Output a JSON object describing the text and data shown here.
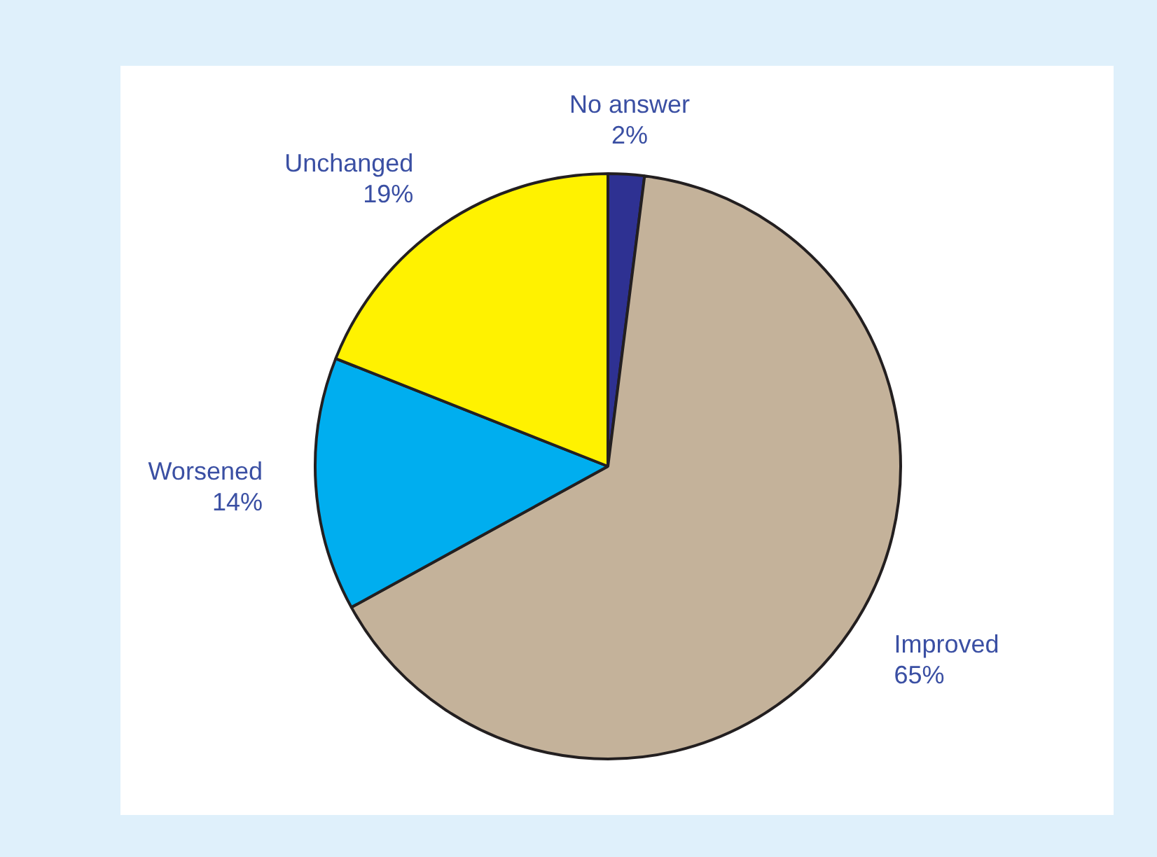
{
  "chart_data": {
    "type": "pie",
    "categories": [
      "No answer",
      "Improved",
      "Worsened",
      "Unchanged"
    ],
    "values": [
      2,
      65,
      14,
      19
    ],
    "value_labels": [
      "2%",
      "65%",
      "14%",
      "19%"
    ],
    "colors": [
      "#2e3192",
      "#c4b29a",
      "#00aeef",
      "#fff200"
    ],
    "legend": false
  }
}
